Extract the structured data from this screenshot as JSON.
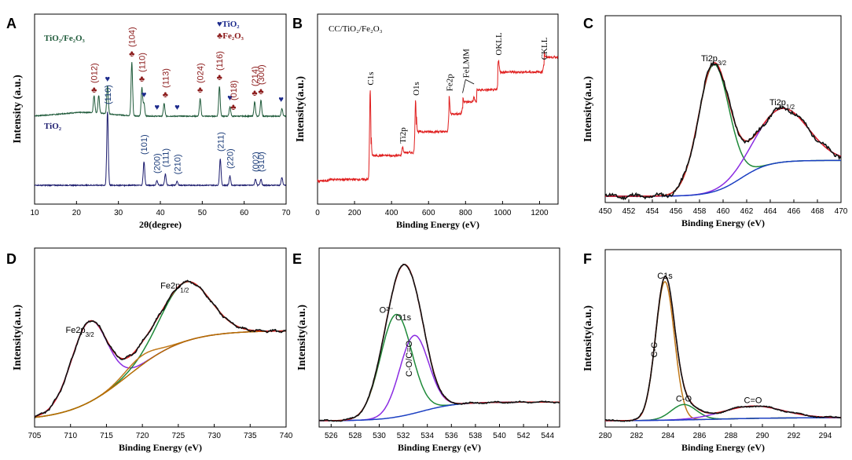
{
  "chart_data": [
    {
      "panel": "A",
      "type": "line",
      "xlabel": "2θ(degree)",
      "ylabel": "Intensity (a.u.)",
      "xlim": [
        10,
        70
      ],
      "xticks": [
        10,
        20,
        30,
        40,
        50,
        60,
        70
      ],
      "legend": [
        {
          "symbol": "♥",
          "label": "TiO₂",
          "color": "#1c2a8c"
        },
        {
          "symbol": "♣",
          "label": "Fe₂O₃",
          "color": "#8b1a1a"
        }
      ],
      "series": [
        {
          "name": "TiO₂/Fe₂O₃",
          "color": "#1f5a3a",
          "baseline": 1.0,
          "peaks": [
            {
              "x": 24.2,
              "h": 0.55
            },
            {
              "x": 25.3,
              "h": 0.55
            },
            {
              "x": 27.4,
              "h": 0.9
            },
            {
              "x": 33.2,
              "h": 1.7
            },
            {
              "x": 35.6,
              "h": 0.9
            },
            {
              "x": 36.1,
              "h": 0.4
            },
            {
              "x": 40.9,
              "h": 0.4
            },
            {
              "x": 49.5,
              "h": 0.55
            },
            {
              "x": 54.1,
              "h": 0.95
            },
            {
              "x": 56.6,
              "h": 0.3
            },
            {
              "x": 62.5,
              "h": 0.45
            },
            {
              "x": 64.0,
              "h": 0.5
            },
            {
              "x": 69.0,
              "h": 0.25
            }
          ],
          "annotations": [
            {
              "x": 24.2,
              "text": "(012)",
              "symbol": "♣"
            },
            {
              "x": 27.4,
              "text": "",
              "symbol": "♥"
            },
            {
              "x": 33.2,
              "text": "(104)",
              "symbol": "♣"
            },
            {
              "x": 35.6,
              "text": "(110)",
              "symbol": "♣"
            },
            {
              "x": 36.1,
              "text": "",
              "symbol": "♥"
            },
            {
              "x": 39.2,
              "text": "",
              "symbol": "♥"
            },
            {
              "x": 41.2,
              "text": "(113)",
              "symbol": "♣"
            },
            {
              "x": 44.0,
              "text": "",
              "symbol": "♥"
            },
            {
              "x": 49.5,
              "text": "(024)",
              "symbol": "♣"
            },
            {
              "x": 54.1,
              "text": "(116)",
              "symbol": "♣"
            },
            {
              "x": 56.6,
              "text": "",
              "symbol": "♥"
            },
            {
              "x": 57.4,
              "text": "(018)",
              "symbol": "♣"
            },
            {
              "x": 62.5,
              "text": "(214)",
              "symbol": "♣"
            },
            {
              "x": 64.0,
              "text": "(300)",
              "symbol": "♣"
            },
            {
              "x": 68.8,
              "text": "",
              "symbol": "♥"
            }
          ]
        },
        {
          "name": "TiO₂",
          "color": "#1c1c6e",
          "baseline": 0.0,
          "peaks": [
            {
              "x": 27.4,
              "h": 2.35
            },
            {
              "x": 36.1,
              "h": 0.75
            },
            {
              "x": 39.2,
              "h": 0.15
            },
            {
              "x": 41.2,
              "h": 0.35
            },
            {
              "x": 44.0,
              "h": 0.12
            },
            {
              "x": 54.3,
              "h": 0.85
            },
            {
              "x": 56.6,
              "h": 0.3
            },
            {
              "x": 62.7,
              "h": 0.2
            },
            {
              "x": 64.0,
              "h": 0.2
            },
            {
              "x": 69.0,
              "h": 0.25
            }
          ],
          "annotations": [
            {
              "x": 27.4,
              "text": "(110)"
            },
            {
              "x": 36.1,
              "text": "(101)"
            },
            {
              "x": 39.2,
              "text": "(200)"
            },
            {
              "x": 41.2,
              "text": "(111)"
            },
            {
              "x": 44.0,
              "text": "(210)"
            },
            {
              "x": 54.3,
              "text": "(211)"
            },
            {
              "x": 56.6,
              "text": "(220)"
            },
            {
              "x": 62.7,
              "text": "(002)"
            },
            {
              "x": 64.0,
              "text": "(310)"
            }
          ]
        }
      ]
    },
    {
      "panel": "B",
      "type": "line",
      "title": "CC/TiO₂/Fe₂O₃",
      "xlabel": "Binding Energy (eV)",
      "ylabel": "Intensity(a.u.)",
      "xlim": [
        0,
        1300
      ],
      "xticks": [
        0,
        200,
        400,
        600,
        800,
        1000,
        1200
      ],
      "series": [
        {
          "name": "Survey",
          "color": "#e02020",
          "steps": [
            [
              0,
              0.05
            ],
            [
              60,
              0.06
            ],
            [
              290,
              0.22
            ],
            [
              460,
              0.24
            ],
            [
              535,
              0.38
            ],
            [
              710,
              0.5
            ],
            [
              785,
              0.58
            ],
            [
              860,
              0.66
            ],
            [
              975,
              0.78
            ],
            [
              1225,
              0.88
            ],
            [
              1300,
              0.9
            ]
          ],
          "peaks": [
            {
              "x": 284.8,
              "h": 0.6
            },
            {
              "x": 458.8,
              "h": 0.05
            },
            {
              "x": 530.1,
              "h": 0.35
            },
            {
              "x": 711.0,
              "h": 0.12
            },
            {
              "x": 784,
              "h": 0.04
            },
            {
              "x": 846,
              "h": 0.03
            },
            {
              "x": 978,
              "h": 0.08
            },
            {
              "x": 1223,
              "h": 0.05
            }
          ]
        }
      ],
      "annotations": [
        {
          "x": 284.8,
          "text": "C1s"
        },
        {
          "x": 458.8,
          "text": "Ti2p"
        },
        {
          "x": 530.1,
          "text": "O1s"
        },
        {
          "x": 711.0,
          "text": "Fe2p"
        },
        {
          "x": 800,
          "text": "FeLMM"
        },
        {
          "x": 978,
          "text": "OKLL"
        },
        {
          "x": 1223,
          "text": "CKLL"
        }
      ]
    },
    {
      "panel": "C",
      "type": "line",
      "xlabel": "Binding Energy (eV)",
      "ylabel": "Intensity(a.u.)",
      "xlim": [
        450,
        470
      ],
      "xticks": [
        450,
        452,
        454,
        456,
        458,
        460,
        462,
        464,
        466,
        468,
        470
      ],
      "labels": [
        {
          "text": "Ti2p",
          "sub": "3/2",
          "x": 459.2
        },
        {
          "text": "Ti2p",
          "sub": "1/2",
          "x": 465.0
        }
      ],
      "components": [
        {
          "name": "Ti2p3/2",
          "color": "#1f8a3a",
          "type": "gauss",
          "c": 459.2,
          "w": 1.3,
          "a": 0.78
        },
        {
          "name": "Ti2p1/2",
          "color": "#8a2be2",
          "type": "gauss",
          "c": 465.0,
          "w": 2.2,
          "a": 0.33
        },
        {
          "name": "Background",
          "color": "#1b3fc2",
          "type": "sigmoid",
          "c": 461.5,
          "w": 1.2,
          "a": 0.22,
          "base": 0.0
        },
        {
          "name": "Envelope",
          "color": "#e02020",
          "type": "sum"
        },
        {
          "name": "Raw",
          "color": "#111111",
          "type": "raw"
        }
      ],
      "ylim": [
        0,
        1.05
      ]
    },
    {
      "panel": "D",
      "type": "line",
      "xlabel": "Binding Energy (eV)",
      "ylabel": "Intensity(a.u.)",
      "xlim": [
        705,
        740
      ],
      "xticks": [
        705,
        710,
        715,
        720,
        725,
        730,
        735,
        740
      ],
      "labels": [
        {
          "text": "Fe2p",
          "sub": "3/2",
          "x": 711.3
        },
        {
          "text": "Fe2p",
          "sub": "1/2",
          "x": 724.5
        }
      ],
      "components": [
        {
          "name": "Fe2p3/2",
          "color": "#8a2be2",
          "type": "gauss",
          "c": 712.6,
          "w": 2.5,
          "a": 0.52
        },
        {
          "name": "Fe2p1/2",
          "color": "#1f8a3a",
          "type": "gauss",
          "c": 726.0,
          "w": 3.4,
          "a": 0.38
        },
        {
          "name": "Satellite",
          "color": "#c07818",
          "type": "gauss",
          "c": 719.8,
          "w": 2.2,
          "a": 0.06
        },
        {
          "name": "Background",
          "color": "#b36b00",
          "type": "sigmoid",
          "c": 718,
          "w": 4.0,
          "a": 0.58,
          "base": 0.0
        },
        {
          "name": "Envelope",
          "color": "#e02020",
          "type": "sum"
        },
        {
          "name": "Raw",
          "color": "#111111",
          "type": "raw"
        }
      ],
      "ylim": [
        0,
        1.05
      ]
    },
    {
      "panel": "E",
      "type": "line",
      "xlabel": "Binding Energy (eV)",
      "ylabel": "Intensity(a.u.)",
      "xlim": [
        525,
        545
      ],
      "xticks": [
        526,
        528,
        530,
        532,
        534,
        536,
        538,
        540,
        542,
        544
      ],
      "labels": [
        {
          "text": "O1s",
          "sub": "",
          "x": 532.0
        }
      ],
      "innerLabels": [
        {
          "text": "O²⁻",
          "x": 530.6
        },
        {
          "text": "C-O/C=O",
          "x": 532.7
        }
      ],
      "components": [
        {
          "name": "O2-",
          "color": "#1f8a3a",
          "type": "gauss",
          "c": 531.4,
          "w": 1.3,
          "a": 0.66
        },
        {
          "name": "C-O/C=O",
          "color": "#8a2be2",
          "type": "gauss",
          "c": 532.9,
          "w": 1.2,
          "a": 0.5
        },
        {
          "name": "Background",
          "color": "#1b3fc2",
          "type": "sigmoid",
          "c": 533.5,
          "w": 1.5,
          "a": 0.12,
          "base": 0.0
        },
        {
          "name": "Envelope",
          "color": "#e02020",
          "type": "sum"
        },
        {
          "name": "Raw",
          "color": "#111111",
          "type": "raw"
        }
      ],
      "ylim": [
        0,
        1.05
      ]
    },
    {
      "panel": "F",
      "type": "line",
      "xlabel": "Binding Energy (eV)",
      "ylabel": "Intensity(a.u.)",
      "xlim": [
        280,
        295
      ],
      "xticks": [
        280,
        282,
        284,
        286,
        288,
        290,
        292,
        294
      ],
      "labels": [
        {
          "text": "C1s",
          "sub": "",
          "x": 283.8
        }
      ],
      "innerLabels": [
        {
          "text": "C-C",
          "x": 283.3
        },
        {
          "text": "C-O",
          "x": 285.0
        },
        {
          "text": "C=O",
          "x": 289.4
        }
      ],
      "components": [
        {
          "name": "C-C",
          "color": "#c07818",
          "type": "gauss",
          "c": 283.8,
          "w": 0.6,
          "a": 0.9
        },
        {
          "name": "C-O",
          "color": "#1f8a3a",
          "type": "gauss",
          "c": 285.0,
          "w": 0.8,
          "a": 0.1
        },
        {
          "name": "C=O",
          "color": "#8a2be2",
          "type": "gauss",
          "c": 289.4,
          "w": 1.9,
          "a": 0.08
        },
        {
          "name": "Background",
          "color": "#1b3fc2",
          "type": "sigmoid",
          "c": 287,
          "w": 2.0,
          "a": 0.02,
          "base": 0.0
        },
        {
          "name": "Envelope",
          "color": "#e02020",
          "type": "sum"
        },
        {
          "name": "Raw",
          "color": "#111111",
          "type": "raw"
        }
      ],
      "ylim": [
        0,
        1.05
      ]
    }
  ]
}
